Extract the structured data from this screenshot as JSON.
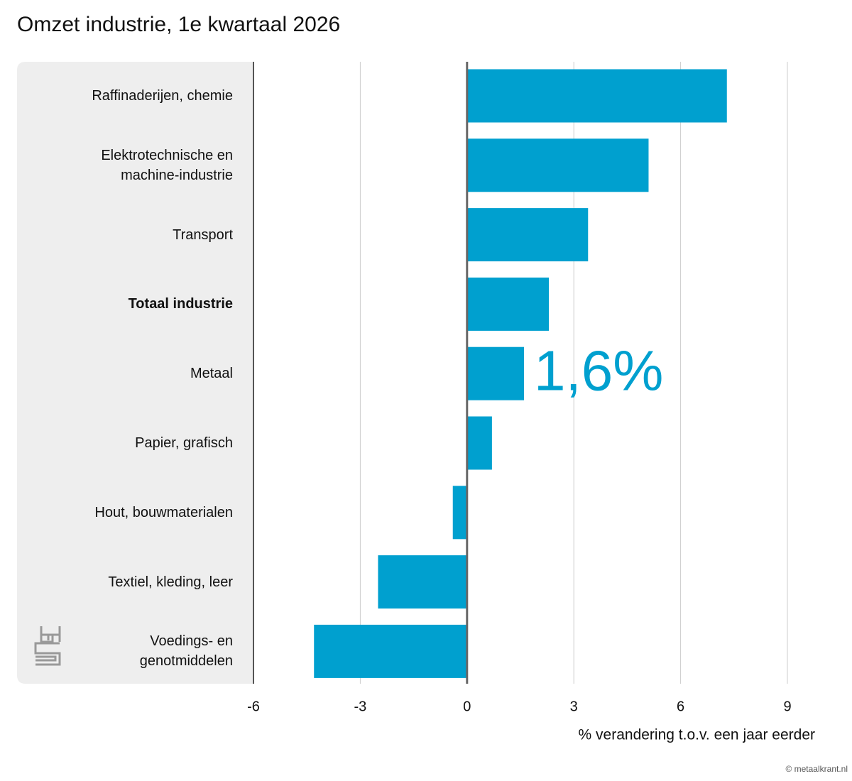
{
  "chart_data": {
    "type": "barh",
    "title": "Omzet industrie, 1e kwartaal 2026",
    "categories": [
      "Raffinaderijen, chemie",
      "Elektrotechnische en machine-industrie",
      "Transport",
      "Totaal industrie",
      "Metaal",
      "Papier, grafisch",
      "Hout, bouwmaterialen",
      "Textiel, kleding, leer",
      "Voedings- en genotmiddelen"
    ],
    "values": [
      7.3,
      5.1,
      3.4,
      2.3,
      1.6,
      0.7,
      -0.4,
      -2.5,
      -4.3
    ],
    "value_labels": [
      null,
      null,
      null,
      null,
      "1,6%",
      null,
      null,
      null,
      null
    ],
    "bold_categories": [
      3
    ],
    "color": "#00a0cf",
    "xlim": [
      -6,
      9
    ],
    "xticks": [
      -6,
      -3,
      0,
      3,
      6,
      9
    ],
    "xlabel": "% verandering t.o.v. een jaar eerder",
    "grid": true,
    "source": "© metaalkrant.nl"
  }
}
